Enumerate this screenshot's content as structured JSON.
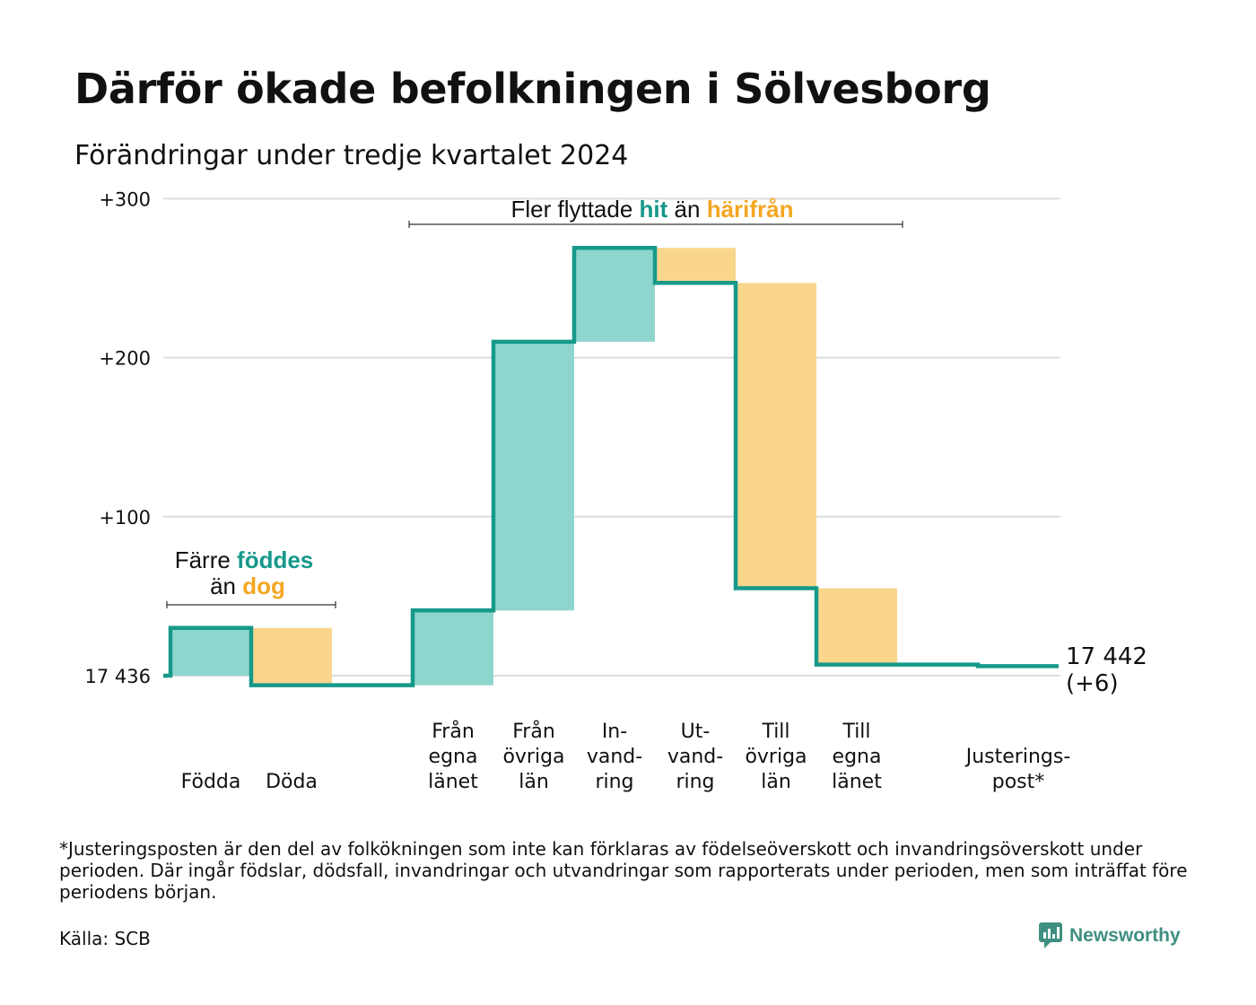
{
  "title": "Därför ökade befolkningen i Sölvesborg",
  "subtitle": "Förändringar under tredje kvartalet 2024",
  "chart_data": {
    "type": "waterfall",
    "baseline_label": "17 436",
    "end_value_label": "17 442",
    "end_change_label": "(+6)",
    "y_ticks": [
      {
        "value": 0,
        "label": "17 436"
      },
      {
        "value": 100,
        "label": "+100"
      },
      {
        "value": 200,
        "label": "+200"
      },
      {
        "value": 300,
        "label": "+300"
      }
    ],
    "ylim": [
      -10,
      300
    ],
    "steps": [
      {
        "label_lines": [
          "Födda"
        ],
        "change": 30,
        "kind": "in"
      },
      {
        "label_lines": [
          "Döda"
        ],
        "change": -36,
        "kind": "out"
      },
      {
        "label_lines": [],
        "change": 0,
        "kind": "gap"
      },
      {
        "label_lines": [
          "Från",
          "egna",
          "länet"
        ],
        "change": 47,
        "kind": "in"
      },
      {
        "label_lines": [
          "Från",
          "övriga",
          "län"
        ],
        "change": 169,
        "kind": "in"
      },
      {
        "label_lines": [
          "In-",
          "vand-",
          "ring"
        ],
        "change": 59,
        "kind": "in"
      },
      {
        "label_lines": [
          "Ut-",
          "vand-",
          "ring"
        ],
        "change": -22,
        "kind": "out"
      },
      {
        "label_lines": [
          "Till",
          "övriga",
          "län"
        ],
        "change": -192,
        "kind": "out"
      },
      {
        "label_lines": [
          "Till",
          "egna",
          "länet"
        ],
        "change": -48,
        "kind": "out"
      },
      {
        "label_lines": [],
        "change": 0,
        "kind": "gap"
      },
      {
        "label_lines": [
          "Justerings-",
          "post*"
        ],
        "change": -1,
        "kind": "adjust"
      }
    ],
    "annotations": {
      "births": {
        "line1": [
          "Färre ",
          "föddes"
        ],
        "line2": [
          "än ",
          "dog"
        ]
      },
      "moves": [
        "Fler flyttade ",
        "hit",
        " än ",
        "härifrån"
      ]
    },
    "colors": {
      "in": "#8ed5cd",
      "out": "#f9d68c",
      "line": "#16998a",
      "grid": "#dddddd",
      "accent_in": "#16998a",
      "accent_out": "#f5a623"
    }
  },
  "footnote": "*Justeringsposten är den del av folkökningen som inte kan förklaras av födelseöverskott och invandringsöverskott under perioden. Där ingår födslar, dödsfall, invandringar och utvandringar som rapporterats under perioden, men som inträffat före periodens början.",
  "source": "Källa: SCB",
  "brand": {
    "name": "Newsworthy",
    "icon": "newsworthy-logo-icon"
  }
}
